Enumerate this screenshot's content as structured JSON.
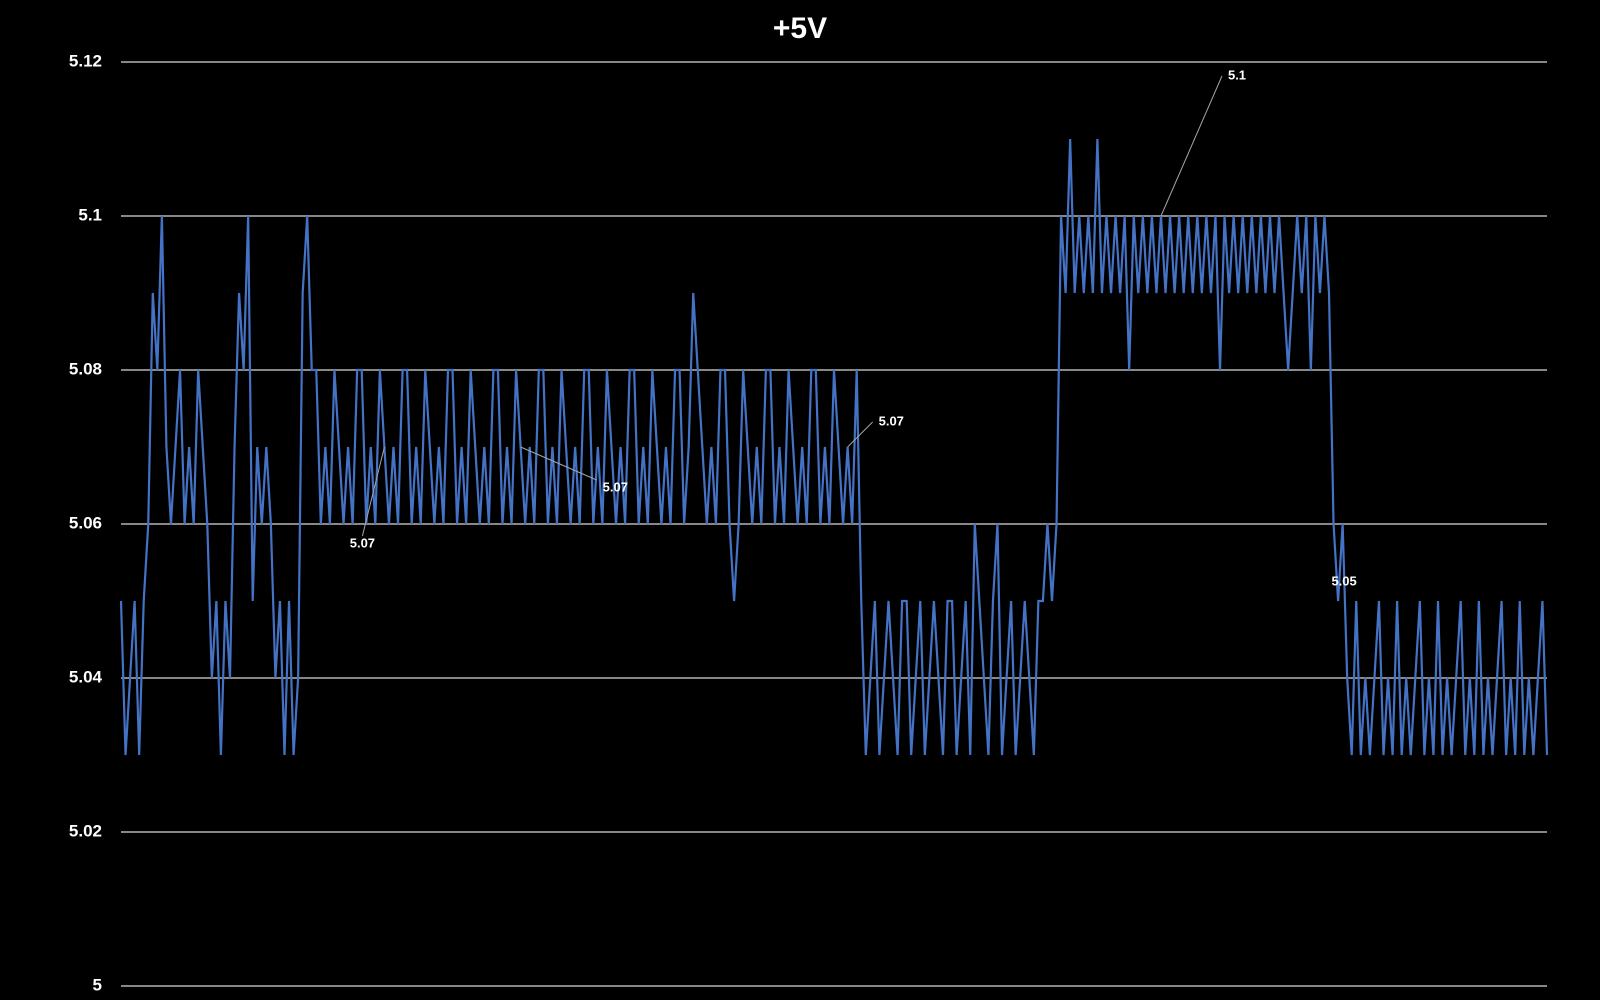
{
  "chart_data": {
    "type": "line",
    "title": "+5V",
    "values": [
      5.05,
      5.03,
      5.04,
      5.05,
      5.03,
      5.05,
      5.06,
      5.09,
      5.08,
      5.1,
      5.07,
      5.06,
      5.07,
      5.08,
      5.06,
      5.07,
      5.06,
      5.08,
      5.07,
      5.06,
      5.04,
      5.05,
      5.03,
      5.05,
      5.04,
      5.07,
      5.09,
      5.08,
      5.1,
      5.05,
      5.07,
      5.06,
      5.07,
      5.06,
      5.04,
      5.05,
      5.03,
      5.05,
      5.03,
      5.04,
      5.09,
      5.1,
      5.08,
      5.08,
      5.06,
      5.07,
      5.06,
      5.08,
      5.07,
      5.06,
      5.07,
      5.06,
      5.08,
      5.08,
      5.06,
      5.07,
      5.06,
      5.08,
      5.07,
      5.06,
      5.07,
      5.06,
      5.08,
      5.08,
      5.06,
      5.07,
      5.06,
      5.08,
      5.07,
      5.06,
      5.07,
      5.06,
      5.08,
      5.08,
      5.06,
      5.07,
      5.06,
      5.08,
      5.07,
      5.06,
      5.07,
      5.06,
      5.08,
      5.08,
      5.06,
      5.07,
      5.06,
      5.08,
      5.07,
      5.06,
      5.07,
      5.06,
      5.08,
      5.08,
      5.06,
      5.07,
      5.06,
      5.08,
      5.07,
      5.06,
      5.07,
      5.06,
      5.08,
      5.08,
      5.06,
      5.07,
      5.06,
      5.08,
      5.07,
      5.06,
      5.07,
      5.06,
      5.08,
      5.08,
      5.06,
      5.07,
      5.06,
      5.08,
      5.07,
      5.06,
      5.07,
      5.06,
      5.08,
      5.08,
      5.06,
      5.07,
      5.09,
      5.08,
      5.07,
      5.06,
      5.07,
      5.06,
      5.08,
      5.08,
      5.06,
      5.05,
      5.06,
      5.08,
      5.07,
      5.06,
      5.07,
      5.06,
      5.08,
      5.08,
      5.06,
      5.07,
      5.06,
      5.08,
      5.07,
      5.06,
      5.07,
      5.06,
      5.08,
      5.08,
      5.06,
      5.07,
      5.06,
      5.08,
      5.07,
      5.06,
      5.07,
      5.06,
      5.08,
      5.05,
      5.03,
      5.04,
      5.05,
      5.03,
      5.04,
      5.05,
      5.04,
      5.03,
      5.05,
      5.05,
      5.03,
      5.04,
      5.05,
      5.03,
      5.04,
      5.05,
      5.04,
      5.03,
      5.05,
      5.05,
      5.03,
      5.04,
      5.05,
      5.03,
      5.06,
      5.05,
      5.04,
      5.03,
      5.05,
      5.06,
      5.03,
      5.04,
      5.05,
      5.03,
      5.04,
      5.05,
      5.04,
      5.03,
      5.05,
      5.05,
      5.06,
      5.05,
      5.06,
      5.1,
      5.09,
      5.11,
      5.09,
      5.1,
      5.09,
      5.1,
      5.09,
      5.11,
      5.09,
      5.1,
      5.09,
      5.1,
      5.09,
      5.1,
      5.08,
      5.1,
      5.09,
      5.1,
      5.09,
      5.1,
      5.09,
      5.1,
      5.09,
      5.1,
      5.09,
      5.1,
      5.09,
      5.1,
      5.09,
      5.1,
      5.09,
      5.1,
      5.09,
      5.1,
      5.08,
      5.1,
      5.09,
      5.1,
      5.09,
      5.1,
      5.09,
      5.1,
      5.09,
      5.1,
      5.09,
      5.1,
      5.09,
      5.1,
      5.09,
      5.08,
      5.09,
      5.1,
      5.09,
      5.1,
      5.08,
      5.1,
      5.09,
      5.1,
      5.09,
      5.06,
      5.05,
      5.06,
      5.04,
      5.03,
      5.05,
      5.03,
      5.04,
      5.03,
      5.04,
      5.05,
      5.03,
      5.04,
      5.03,
      5.05,
      5.03,
      5.04,
      5.03,
      5.04,
      5.05,
      5.03,
      5.04,
      5.03,
      5.05,
      5.03,
      5.04,
      5.03,
      5.04,
      5.05,
      5.03,
      5.04,
      5.03,
      5.05,
      5.03,
      5.04,
      5.03,
      5.04,
      5.05,
      5.03,
      5.04,
      5.03,
      5.05,
      5.03,
      5.04,
      5.03,
      5.04,
      5.05,
      5.03
    ],
    "color": "#4472c4",
    "labeled_points": [
      58,
      88,
      160,
      229,
      268
    ],
    "ylim": [
      5,
      5.12
    ],
    "yticks": [
      5,
      5.02,
      5.04,
      5.06,
      5.08,
      5.1,
      5.12
    ],
    "grid": true
  }
}
